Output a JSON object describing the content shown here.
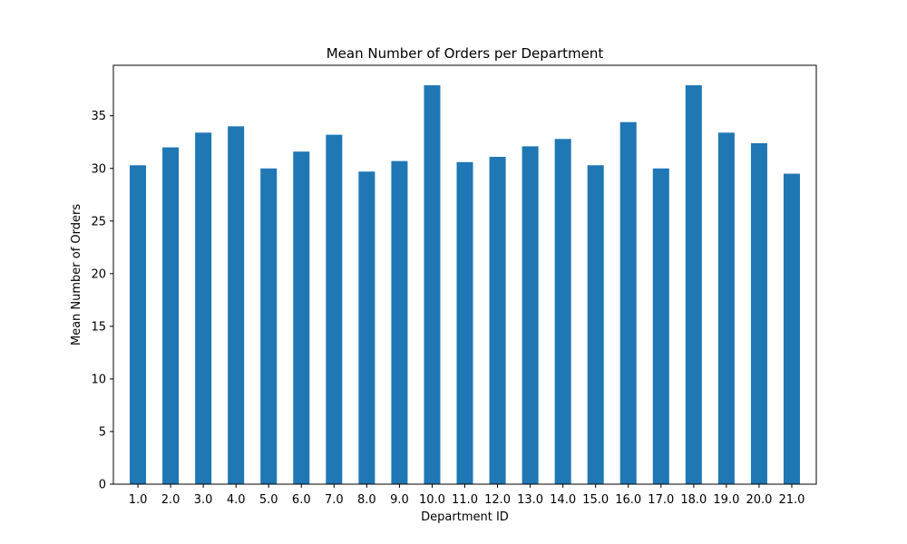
{
  "chart_data": {
    "type": "bar",
    "title": "Mean Number of Orders per Department",
    "xlabel": "Department ID",
    "ylabel": "Mean Number of Orders",
    "categories": [
      "1.0",
      "2.0",
      "3.0",
      "4.0",
      "5.0",
      "6.0",
      "7.0",
      "8.0",
      "9.0",
      "10.0",
      "11.0",
      "12.0",
      "13.0",
      "14.0",
      "15.0",
      "16.0",
      "17.0",
      "18.0",
      "19.0",
      "20.0",
      "21.0"
    ],
    "values": [
      30.3,
      32.0,
      33.4,
      34.0,
      30.0,
      31.6,
      33.2,
      29.7,
      30.7,
      37.9,
      30.6,
      31.1,
      32.1,
      32.8,
      30.3,
      34.4,
      30.0,
      37.9,
      33.4,
      32.4,
      29.5
    ],
    "yticks": [
      0,
      5,
      10,
      15,
      20,
      25,
      30,
      35
    ],
    "ylim": [
      0,
      39.8
    ],
    "bar_color": "#1f77b4",
    "grid": false,
    "legend": "none"
  }
}
